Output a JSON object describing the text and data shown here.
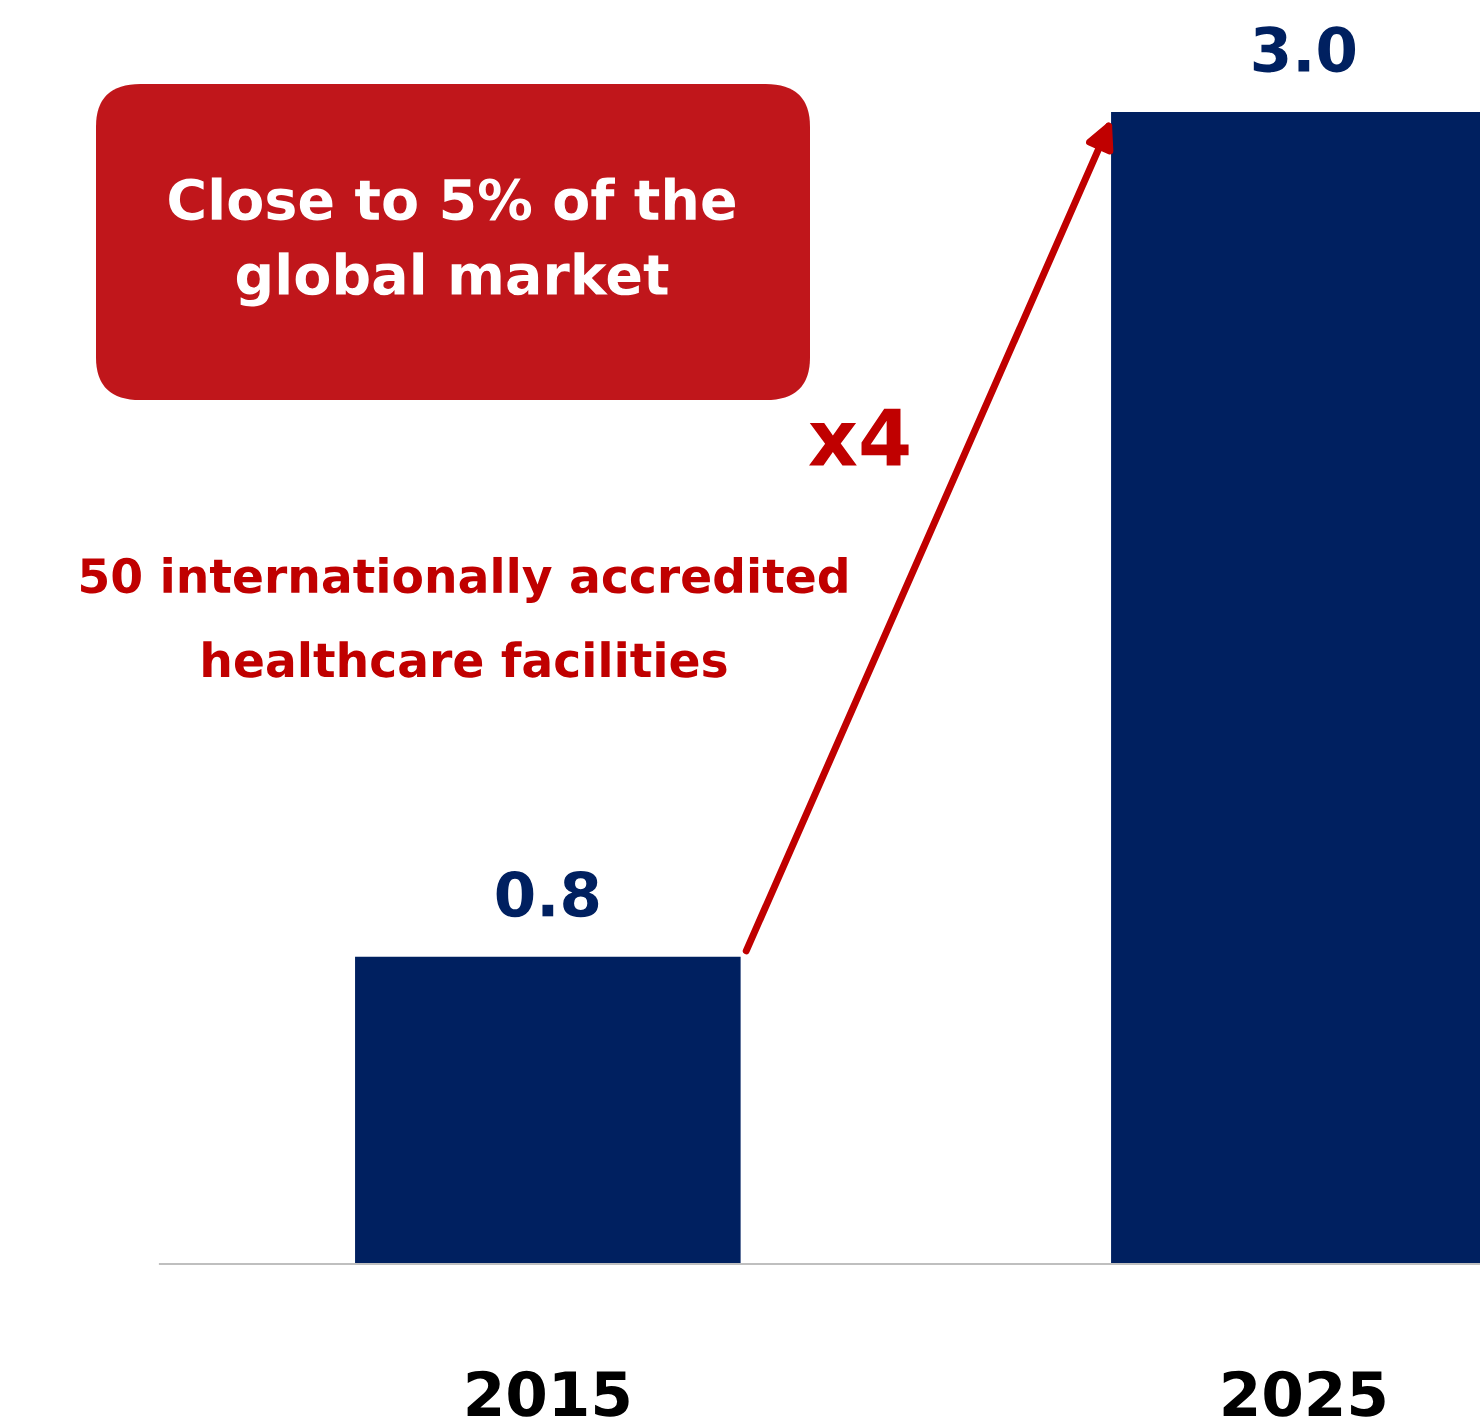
{
  "chart_data": {
    "type": "bar",
    "categories": [
      "2015",
      "2025"
    ],
    "values": [
      0.8,
      3.0
    ],
    "color": "#002060",
    "value_labels": [
      "0.8",
      "3.0"
    ],
    "grid": false,
    "legend": false,
    "annotations": [
      "Close to 5% of the global market",
      "x4",
      "50 internationally accredited healthcare facilities"
    ]
  }
}
